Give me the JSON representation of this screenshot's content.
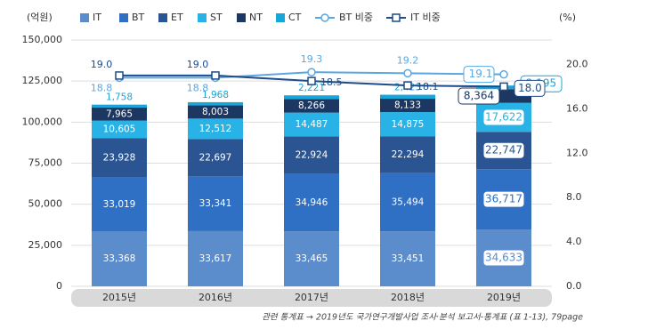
{
  "chart_data": {
    "type": "stacked_bar_line",
    "y_label": "(억원)",
    "y2_label": "(%)",
    "categories": [
      "2015년",
      "2016년",
      "2017년",
      "2018년",
      "2019년"
    ],
    "series": [
      {
        "name": "IT",
        "color": "#5b8ccc",
        "values": [
          33368,
          33617,
          33465,
          33451,
          34633
        ],
        "value_labels": [
          "33,368",
          "33,617",
          "33,465",
          "33,451",
          "34,633"
        ]
      },
      {
        "name": "BT",
        "color": "#2f6fc4",
        "values": [
          33019,
          33341,
          34946,
          35494,
          36717
        ],
        "value_labels": [
          "33,019",
          "33,341",
          "34,946",
          "35,494",
          "36,717"
        ]
      },
      {
        "name": "ET",
        "color": "#2b5592",
        "values": [
          23928,
          22697,
          22924,
          22294,
          22747
        ],
        "value_labels": [
          "23,928",
          "22,697",
          "22,924",
          "22,294",
          "22,747"
        ]
      },
      {
        "name": "ST",
        "color": "#29b2e6",
        "values": [
          10605,
          12512,
          14487,
          14875,
          17622
        ],
        "value_labels": [
          "10,605",
          "12,512",
          "14,487",
          "14,875",
          "17,622"
        ]
      },
      {
        "name": "NT",
        "color": "#1b3762",
        "values": [
          7965,
          8003,
          8266,
          8133,
          8364
        ],
        "value_labels": [
          "7,965",
          "8,003",
          "8,266",
          "8,133",
          "8,364"
        ]
      },
      {
        "name": "CT",
        "color": "#16a6d9",
        "values": [
          1758,
          1968,
          2221,
          2423,
          2195
        ],
        "value_labels": [
          "1,758",
          "1,968",
          "2,221",
          "2,423",
          "2,195"
        ]
      },
      {
        "name": "BT 비중",
        "type": "line",
        "axis": "y2",
        "color": "#5aa7e2",
        "marker": "circle",
        "values": [
          18.8,
          18.8,
          19.3,
          19.2,
          19.1
        ]
      },
      {
        "name": "IT 비중",
        "type": "line",
        "axis": "y2",
        "color": "#1f4c8a",
        "marker": "square",
        "values": [
          19.0,
          19.0,
          18.5,
          18.1,
          18.0
        ],
        "value_labels": [
          "19.0",
          "19.0",
          "18.5",
          "18.1",
          "18.0"
        ]
      }
    ],
    "ylim": [
      0,
      150000
    ],
    "yticks": [
      0,
      {
        "value": 25000,
        "label": "25,000"
      },
      {
        "value": 50000,
        "label": "50,000"
      },
      {
        "value": 75000,
        "label": "75,000"
      },
      {
        "value": 100000,
        "label": "100,000"
      },
      {
        "value": 125000,
        "label": "125,000"
      },
      {
        "value": 150000,
        "label": "150,000"
      }
    ],
    "y2lim": [
      0,
      22.2
    ],
    "y2ticks": [
      {
        "value": 0,
        "label": "0.0"
      },
      {
        "value": 4,
        "label": "4.0"
      },
      {
        "value": 8,
        "label": "8.0"
      },
      {
        "value": 12,
        "label": "12.0"
      },
      {
        "value": 16,
        "label": "16.0"
      },
      {
        "value": 20,
        "label": "20.0"
      }
    ],
    "grid": true,
    "legend": "top",
    "note": "관련 통계표 → 2019년도 국가연구개발사업 조사·분석 보고서-통계표 (표 1-13), 79page"
  }
}
